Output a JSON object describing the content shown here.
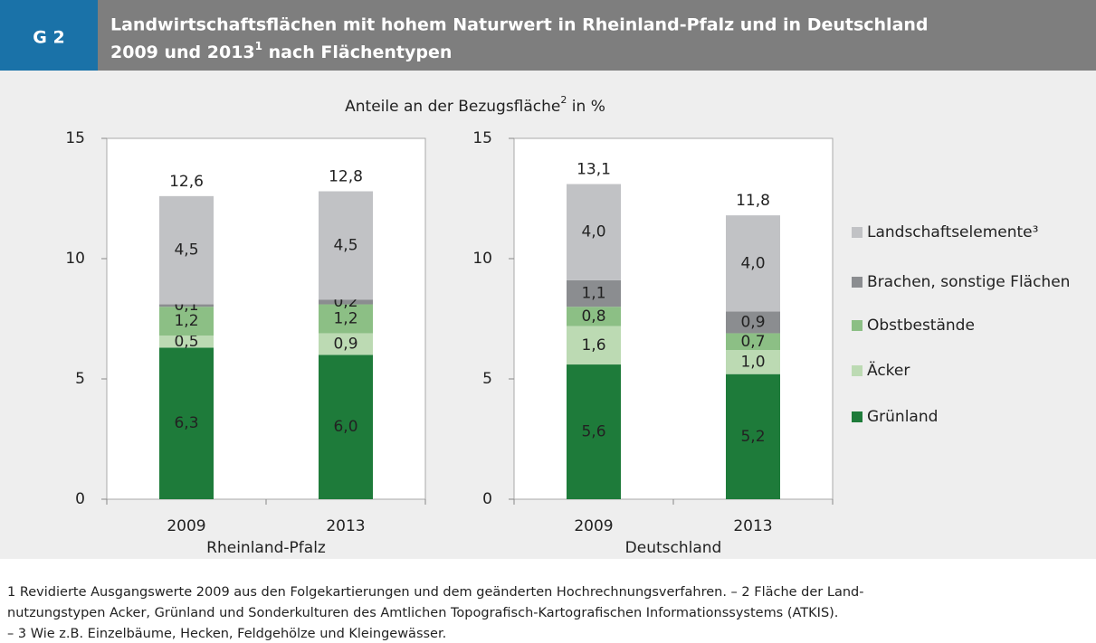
{
  "header": {
    "label": "G 2",
    "title_line1": "Landwirtschaftsflächen mit hohem Naturwert in Rheinland-Pfalz und in Deutschland",
    "title_line2_a": "2009 und 2013",
    "title_line2_sup": "1",
    "title_line2_b": " nach Flächentypen"
  },
  "subtitle": {
    "text_a": "Anteile  an der Bezugsfläche",
    "sup": "2",
    "text_b": " in %"
  },
  "chart_data": [
    {
      "type": "bar",
      "stacked": true,
      "region": "Rheinland-Pfalz",
      "region_color": "#c0264b",
      "categories": [
        "2009",
        "2013"
      ],
      "series": [
        {
          "name": "Grünland",
          "color": "#1e7b3a",
          "values": [
            6.3,
            6.0
          ],
          "value_labels": [
            "6,3",
            "6,0"
          ]
        },
        {
          "name": "Äcker",
          "color": "#bcdab3",
          "values": [
            0.5,
            0.9
          ],
          "value_labels": [
            "0,5",
            "0,9"
          ]
        },
        {
          "name": "Obstbestände",
          "color": "#8cbf85",
          "values": [
            1.2,
            1.2
          ],
          "value_labels": [
            "1,2",
            "1,2"
          ]
        },
        {
          "name": "Brachen, sonstige Flächen",
          "color": "#8b8d90",
          "values": [
            0.1,
            0.2
          ],
          "value_labels": [
            "0,1",
            "0,2"
          ]
        },
        {
          "name": "Landschaftselemente³",
          "color": "#c1c2c5",
          "values": [
            4.5,
            4.5
          ],
          "value_labels": [
            "4,5",
            "4,5"
          ]
        }
      ],
      "totals": [
        12.6,
        12.8
      ],
      "total_labels": [
        "12,6",
        "12,8"
      ],
      "ylim": [
        0,
        15
      ],
      "yticks": [
        0,
        5,
        10,
        15
      ]
    },
    {
      "type": "bar",
      "stacked": true,
      "region": "Deutschland",
      "region_color": "#1b7ab4",
      "categories": [
        "2009",
        "2013"
      ],
      "series": [
        {
          "values": [
            5.6,
            5.2
          ],
          "value_labels": [
            "5,6",
            "5,2"
          ]
        },
        {
          "values": [
            1.6,
            1.0
          ],
          "value_labels": [
            "1,6",
            "1,0"
          ]
        },
        {
          "values": [
            0.8,
            0.7
          ],
          "value_labels": [
            "0,8",
            "0,7"
          ]
        },
        {
          "values": [
            1.1,
            0.9
          ],
          "value_labels": [
            "1,1",
            "0,9"
          ]
        },
        {
          "values": [
            4.0,
            4.0
          ],
          "value_labels": [
            "4,0",
            "4,0"
          ]
        }
      ],
      "totals": [
        13.1,
        11.8
      ],
      "total_labels": [
        "13,1",
        "11,8"
      ],
      "ylim": [
        0,
        15
      ],
      "yticks": [
        0,
        5,
        10,
        15
      ]
    }
  ],
  "footnotes": [
    "1 Revidierte Ausgangswerte 2009 aus den Folgekartierungen und dem geänderten Hochrechnungsverfahren. – 2  Fläche der  Land-",
    "nutzungstypen  Acker, Grünland  und  Sonderkulturen  des Amtlichen Topografisch-Kartografischen Informationssystems (ATKIS).",
    "– 3 Wie z.B. Einzelbäume, Hecken, Feldgehölze und Kleingewässer."
  ]
}
